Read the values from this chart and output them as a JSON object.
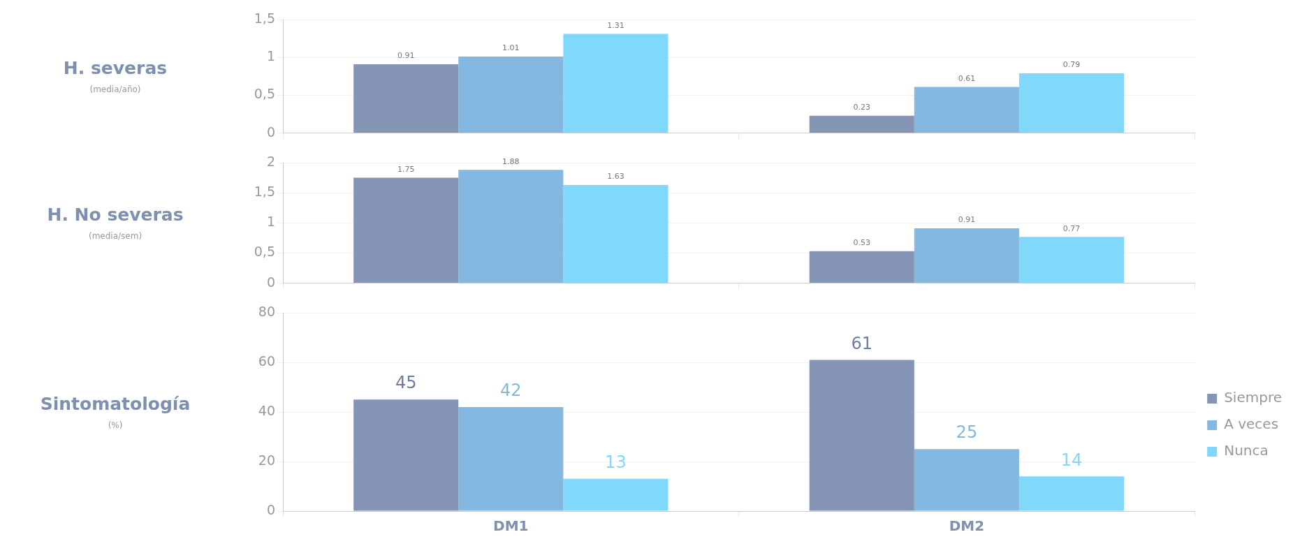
{
  "chart_data": [
    {
      "type": "bar",
      "ylabel": "H. severas",
      "annotations": [
        "(media/año)"
      ],
      "categories": [
        null,
        null
      ],
      "ylim": [
        0,
        1.5
      ],
      "yticks": [
        {
          "value": 0,
          "label": "0"
        },
        {
          "value": 0.5,
          "label": "0,5"
        },
        {
          "value": 1,
          "label": "1"
        },
        {
          "value": 1.5,
          "label": "1,5"
        }
      ],
      "grid": "y",
      "legend": false,
      "tick_labels": "y",
      "series": [
        {
          "color": "#8595b5",
          "values": [
            0.91,
            0.23
          ],
          "value_labels": [
            "0.91",
            "0.23"
          ]
        },
        {
          "color": "#85b8e0",
          "values": [
            1.01,
            0.61
          ],
          "value_labels": [
            "1.01",
            "0.61"
          ]
        },
        {
          "color": "#80d8fa",
          "values": [
            1.31,
            0.79
          ],
          "value_labels": [
            "1.31",
            "0.79"
          ]
        }
      ]
    },
    {
      "type": "bar",
      "ylabel": "H. No severas",
      "annotations": [
        "(media/sem)"
      ],
      "categories": [
        null,
        null
      ],
      "ylim": [
        0,
        2
      ],
      "yticks": [
        {
          "value": 0,
          "label": "0"
        },
        {
          "value": 0.5,
          "label": "0,5"
        },
        {
          "value": 1,
          "label": "1"
        },
        {
          "value": 1.5,
          "label": "1,5"
        },
        {
          "value": 2,
          "label": "2"
        }
      ],
      "grid": "y",
      "legend": false,
      "tick_labels": "y",
      "series": [
        {
          "color": "#8595b5",
          "values": [
            1.75,
            0.53
          ],
          "value_labels": [
            "1.75",
            "0.53"
          ]
        },
        {
          "color": "#85b8e0",
          "values": [
            1.88,
            0.91
          ],
          "value_labels": [
            "1.88",
            "0.91"
          ]
        },
        {
          "color": "#80d8fa",
          "values": [
            1.63,
            0.77
          ],
          "value_labels": [
            "1.63",
            "0.77"
          ]
        }
      ]
    },
    {
      "type": "bar",
      "ylabel": "Sintomatología",
      "annotations": [
        "(%)"
      ],
      "categories": [
        "DM1",
        "DM2"
      ],
      "ylim": [
        0,
        80
      ],
      "yticks": [
        0,
        20,
        40,
        60,
        80
      ],
      "grid": "y",
      "legend": "right",
      "data_labels": true,
      "series": [
        {
          "name": "Siempre",
          "color": "#8595b5",
          "values": [
            45,
            61
          ]
        },
        {
          "name": "A veces",
          "color": "#85b8e0",
          "values": [
            42,
            25
          ]
        },
        {
          "name": "Nunca",
          "color": "#80d8fa",
          "values": [
            13,
            14
          ]
        }
      ]
    }
  ]
}
